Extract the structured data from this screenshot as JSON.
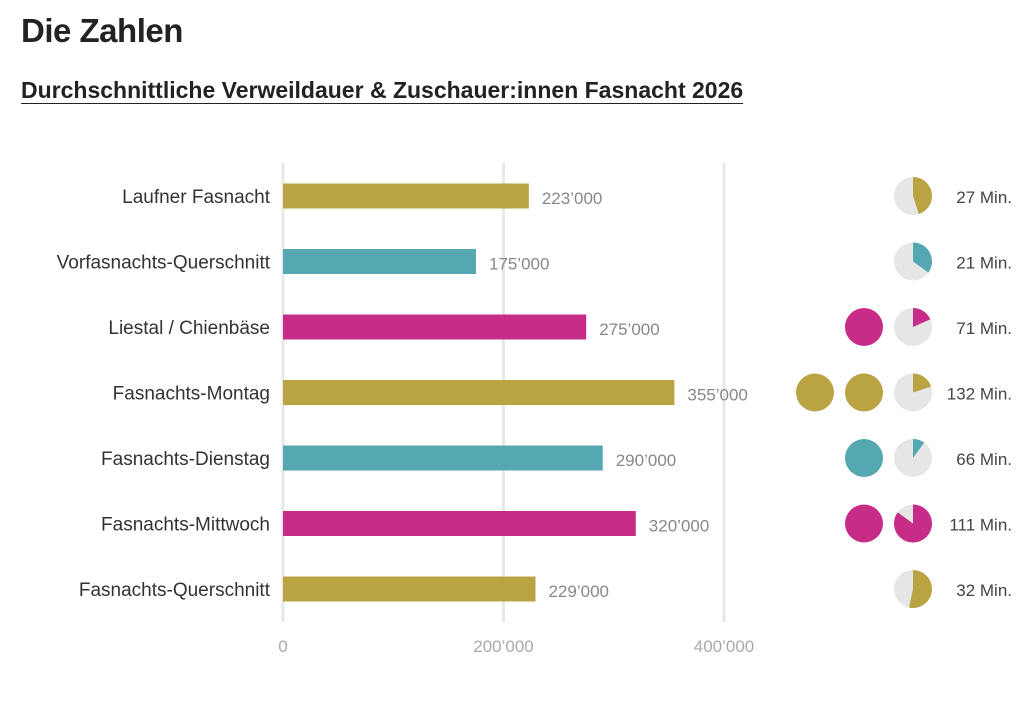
{
  "title": "Die Zahlen",
  "subtitle": "Durchschnittliche Verweildauer & Zuschauer:innen Fasnacht 2026",
  "chart_data": {
    "type": "bar",
    "orientation": "horizontal",
    "categories": [
      "Laufner Fasnacht",
      "Vorfasnachts-Querschnitt",
      "Liestal / Chienbäse",
      "Fasnachts-Montag",
      "Fasnachts-Dienstag",
      "Fasnachts-Mittwoch",
      "Fasnachts-Querschnitt"
    ],
    "values": [
      223000,
      175000,
      275000,
      355000,
      290000,
      320000,
      229000
    ],
    "value_labels": [
      "223’000",
      "175’000",
      "275’000",
      "355’000",
      "290’000",
      "320’000",
      "229’000"
    ],
    "colors": [
      "#b9a343",
      "#55a7b2",
      "#c72c88",
      "#b9a343",
      "#55a7b2",
      "#c72c88",
      "#b9a343"
    ],
    "xlim": [
      0,
      400000
    ],
    "xticks": [
      0,
      200000,
      400000
    ],
    "xtick_labels": [
      "0",
      "200’000",
      "400’000"
    ],
    "grid": true,
    "minutes": [
      27,
      21,
      71,
      132,
      66,
      111,
      32
    ],
    "minutes_labels": [
      "27 Min.",
      "21 Min.",
      "71 Min.",
      "132 Min.",
      "66 Min.",
      "111 Min.",
      "32 Min."
    ],
    "minutes_per_pie": 60,
    "pie_background": "#e6e6e6"
  }
}
